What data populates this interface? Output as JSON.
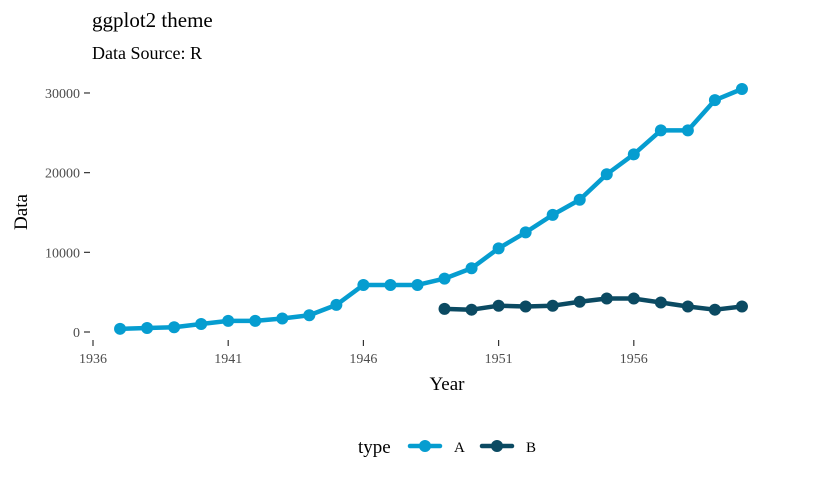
{
  "chart_data": {
    "type": "line",
    "title": "ggplot2 theme",
    "subtitle": "Data Source: R",
    "xlabel": "Year",
    "ylabel": "Data",
    "xlim": [
      1936,
      1961
    ],
    "ylim": [
      0,
      30500
    ],
    "xticks": [
      1936,
      1941,
      1946,
      1951,
      1956
    ],
    "yticks": [
      0,
      10000,
      20000,
      30000
    ],
    "grid": false,
    "legend_position": "bottom",
    "legend_title": "type",
    "colors": {
      "A": "#069DD0",
      "B": "#0B4A62"
    },
    "series": [
      {
        "name": "A",
        "x": [
          1937,
          1938,
          1939,
          1940,
          1941,
          1942,
          1943,
          1944,
          1945,
          1946,
          1947,
          1948,
          1949,
          1950,
          1951,
          1952,
          1953,
          1954,
          1955,
          1956,
          1957,
          1958,
          1959,
          1960
        ],
        "values": [
          400,
          500,
          600,
          1000,
          1400,
          1400,
          1700,
          2100,
          3400,
          5900,
          5900,
          5900,
          6700,
          8000,
          10500,
          12500,
          14700,
          16600,
          19800,
          22300,
          25300,
          25300,
          29100,
          30500
        ]
      },
      {
        "name": "B",
        "x": [
          1949,
          1950,
          1951,
          1952,
          1953,
          1954,
          1955,
          1956,
          1957,
          1958,
          1959,
          1960
        ],
        "values": [
          2900,
          2800,
          3300,
          3200,
          3300,
          3800,
          4200,
          4200,
          3700,
          3200,
          2800,
          3200
        ]
      }
    ]
  }
}
